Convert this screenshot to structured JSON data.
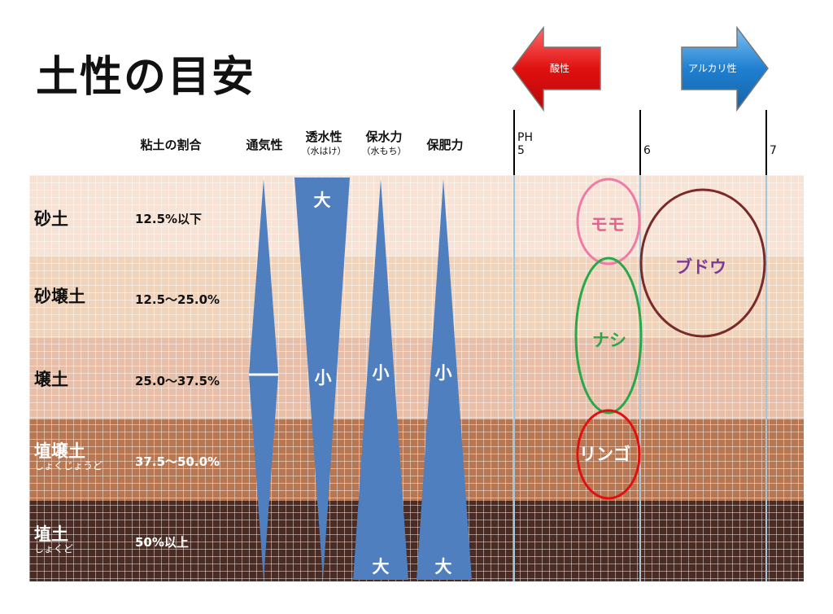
{
  "title": "土性の目安",
  "headers": {
    "clay_ratio": "粘土の割合",
    "aeration": "通気性",
    "permeability": "透水性",
    "permeability_sub": "（水はけ）",
    "water_retention": "保水力",
    "water_retention_sub": "（水もち）",
    "fertility_retention": "保肥力"
  },
  "ph_axis": {
    "label": "PH",
    "ticks": [
      "5",
      "6",
      "7"
    ]
  },
  "arrows": {
    "acidic": "酸性",
    "alkaline": "アルカリ性"
  },
  "soils": [
    {
      "name": "砂土",
      "sub": "",
      "clay": "12.5%以下",
      "color": "#f6e3d6"
    },
    {
      "name": "砂壌土",
      "sub": "",
      "clay": "12.5～25.0%",
      "color": "#f0d3bb"
    },
    {
      "name": "壌土",
      "sub": "",
      "clay": "25.0～37.5%",
      "color": "#e7bea7"
    },
    {
      "name": "埴壌土",
      "sub": "しょくじょうど",
      "clay": "37.5～50.0%",
      "color": "#b77752"
    },
    {
      "name": "埴土",
      "sub": "しょくど",
      "clay": "50%以上",
      "color": "#4a2c24"
    }
  ],
  "wedges": {
    "permeability_top": "大",
    "permeability_mid": "小",
    "water_mid": "小",
    "water_bottom": "大",
    "fertility_mid": "小",
    "fertility_bottom": "大"
  },
  "fruits": [
    {
      "name": "モモ",
      "color": "#e8608f"
    },
    {
      "name": "ナシ",
      "color": "#2aa84a"
    },
    {
      "name": "リンゴ",
      "color": "#ffffff"
    },
    {
      "name": "ブドウ",
      "color": "#7b3a9a"
    }
  ],
  "colors": {
    "wedge": "#4f7fbf",
    "acid_arrow": "#e01010",
    "alkali_arrow": "#1f7fd0",
    "peach_ring": "#ef7aa8",
    "pear_ring": "#28a84a",
    "apple_ring": "#e01010",
    "grape_ring": "#7a2a2a"
  }
}
